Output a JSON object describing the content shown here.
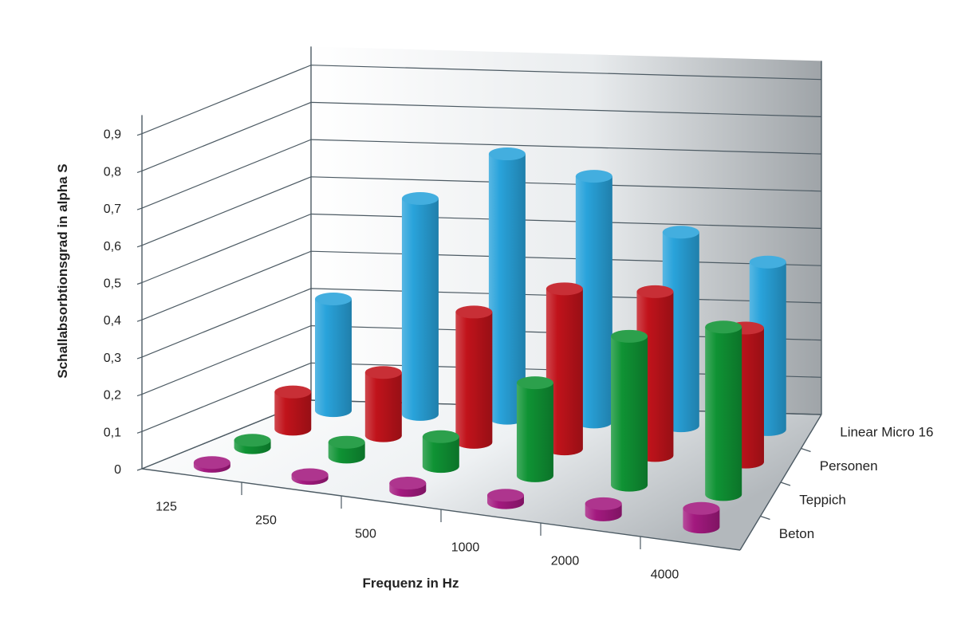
{
  "chart_data": {
    "type": "bar3d",
    "ylabel": "Schallabsorbtionsgrad in alpha S",
    "xlabel": "Frequenz in Hz",
    "categories": [
      "125",
      "250",
      "500",
      "1000",
      "2000",
      "4000"
    ],
    "yticks": [
      "0",
      "0,1",
      "0,2",
      "0,3",
      "0,4",
      "0,5",
      "0,6",
      "0,7",
      "0,8",
      "0,9"
    ],
    "ylim": [
      0,
      0.95
    ],
    "grid": true,
    "series": [
      {
        "name": "Beton",
        "color": "#a3197f",
        "values": [
          0.01,
          0.01,
          0.02,
          0.02,
          0.03,
          0.05
        ]
      },
      {
        "name": "Teppich",
        "color": "#0f9334",
        "values": [
          0.02,
          0.04,
          0.08,
          0.25,
          0.4,
          0.45
        ]
      },
      {
        "name": "Personen",
        "color": "#c1131b",
        "values": [
          0.1,
          0.17,
          0.35,
          0.43,
          0.44,
          0.36
        ]
      },
      {
        "name": "Linear Micro 16",
        "color": "#29a3db",
        "values": [
          0.3,
          0.58,
          0.71,
          0.66,
          0.52,
          0.45
        ]
      }
    ]
  }
}
